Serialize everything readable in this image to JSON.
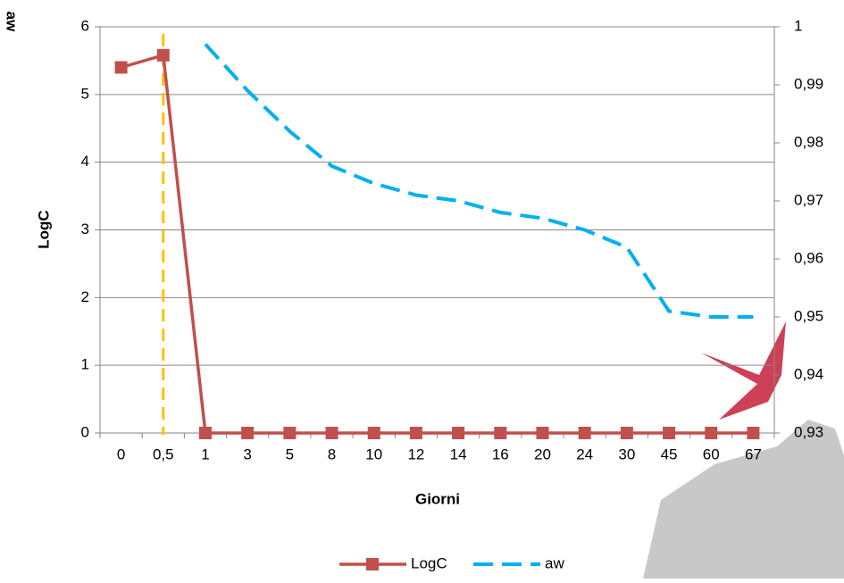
{
  "chart_data": {
    "type": "line",
    "x_label": "Giorni",
    "y_label": "LogC",
    "y2_label": "aw",
    "categories": [
      "0",
      "0,5",
      "1",
      "3",
      "5",
      "8",
      "10",
      "12",
      "14",
      "16",
      "20",
      "24",
      "30",
      "45",
      "60",
      "67"
    ],
    "series": [
      {
        "name": "LogC",
        "color": "#c0504d",
        "values": [
          5.4,
          5.58,
          0,
          0,
          0,
          0,
          0,
          0,
          0,
          0,
          0,
          0,
          0,
          0,
          0,
          0
        ]
      },
      {
        "name": "aw",
        "color": "#00b0f0",
        "axis": "y2",
        "values": [
          null,
          null,
          0.997,
          0.989,
          0.982,
          0.976,
          0.973,
          0.971,
          0.97,
          0.968,
          0.967,
          0.965,
          0.962,
          0.951,
          0.95,
          0.95
        ]
      }
    ],
    "ylim": [
      0,
      6
    ],
    "yticks": [
      0,
      1,
      2,
      3,
      4,
      5,
      6
    ],
    "y2lim": [
      0.93,
      1
    ],
    "y2ticks": [
      {
        "value": 0.93,
        "label": "0,93"
      },
      {
        "value": 0.94,
        "label": "0,94"
      },
      {
        "value": 0.95,
        "label": "0,95"
      },
      {
        "value": 0.96,
        "label": "0,96"
      },
      {
        "value": 0.97,
        "label": "0,97"
      },
      {
        "value": 0.98,
        "label": "0,98"
      },
      {
        "value": 0.99,
        "label": "0,99"
      },
      1
    ],
    "grid": true,
    "legend": "bottom",
    "reference_line": {
      "category": "0,5",
      "color": "#ffc000"
    }
  }
}
